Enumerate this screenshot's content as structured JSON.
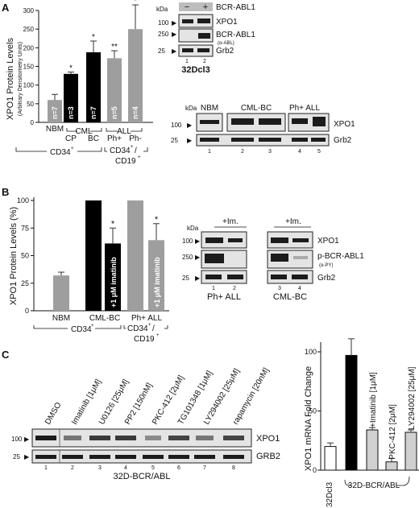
{
  "panel_labels": {
    "a": "A",
    "b": "B",
    "c": "C"
  },
  "chart_data": [
    {
      "type": "bar",
      "panel": "A",
      "ylabel": "XPO1 Protein Levels",
      "ylabel_sub": "(Arbitrary Densitometry Units)",
      "ylim": [
        0,
        300
      ],
      "yticks": [
        "0",
        "50",
        "100",
        "150",
        "200",
        "250",
        "300"
      ],
      "categories": [
        "NBM",
        "CP",
        "BC",
        "Ph+",
        "Ph-"
      ],
      "values": [
        60,
        130,
        188,
        172,
        250
      ],
      "errors": [
        15,
        5,
        30,
        20,
        65
      ],
      "n_labels": [
        "n=7",
        "n=3",
        "n=7",
        "n=5",
        "n=4"
      ],
      "significance": [
        "",
        "*",
        "*",
        "**",
        "*"
      ],
      "colors": [
        "#9e9e9e",
        "#000000",
        "#000000",
        "#9e9e9e",
        "#9e9e9e"
      ],
      "group_labels": {
        "cml": "CML",
        "all": "ALL",
        "cd34": "CD34",
        "cd34_sup": "+",
        "cd34cd19": "CD34",
        "cd19": "CD19",
        "sep": "/",
        "plus": "+"
      }
    },
    {
      "type": "bar",
      "panel": "B",
      "ylabel": "XPO1 Protein Levels (%)",
      "ylim": [
        0,
        100
      ],
      "yticks": [
        "0",
        "25",
        "50",
        "75",
        "100"
      ],
      "categories": [
        "NBM",
        "CML-BC",
        "Ph+ ALL"
      ],
      "bars": [
        {
          "group": "NBM",
          "value": 32,
          "error": 3,
          "color": "#9e9e9e",
          "label": ""
        },
        {
          "group": "CML-BC",
          "value": 100,
          "error": 0,
          "color": "#000000",
          "label": ""
        },
        {
          "group": "CML-BC",
          "value": 61,
          "error": 14,
          "color": "#000000",
          "label": "+1 μM imatinib",
          "sig": "*"
        },
        {
          "group": "Ph+ ALL",
          "value": 100,
          "error": 0,
          "color": "#9e9e9e",
          "label": ""
        },
        {
          "group": "Ph+ ALL",
          "value": 64,
          "error": 15,
          "color": "#9e9e9e",
          "label": "+1 μM imatinib",
          "sig": "*"
        }
      ],
      "group_labels": {
        "cd34": "CD34",
        "plus": "+",
        "cd34cd19": "CD34",
        "sep": "/",
        "cd19": "CD19"
      }
    },
    {
      "type": "bar",
      "panel": "C",
      "ylabel": "XPO1 mRNA Fold Change",
      "ylim": [
        0,
        100
      ],
      "yticks": [
        "0",
        "50",
        "100"
      ],
      "categories": [
        "32Dcl3",
        "",
        "+Imatinib [1μM]",
        "PKC-412 [2μM]",
        "LY294002 [25μM]"
      ],
      "values": [
        20,
        97,
        34,
        7,
        32
      ],
      "errors": [
        3,
        14,
        2,
        3,
        2
      ],
      "colors": [
        "#ffffff",
        "#000000",
        "#d0d0d0",
        "#d0d0d0",
        "#d0d0d0"
      ],
      "group_label": "32D-BCR/ABL"
    }
  ],
  "blots": {
    "a_right_top": {
      "kda": "kDa",
      "minus": "−",
      "plus": "+",
      "treatment": "BCR-ABL1",
      "markers": [
        "100",
        "250",
        "25"
      ],
      "proteins": [
        "XPO1",
        "BCR-ABL1",
        "(α-ABL)",
        "Grb2"
      ],
      "lanes": [
        "1",
        "2"
      ],
      "cell_line": "32Dcl3"
    },
    "a_right_bottom": {
      "kda": "kDa",
      "groups": [
        "NBM",
        "CML-BC",
        "Ph+ ALL"
      ],
      "markers": [
        "100",
        "25"
      ],
      "proteins": [
        "XPO1",
        "Grb2"
      ],
      "lanes": [
        "1",
        "2",
        "3",
        "4",
        "5"
      ]
    },
    "b_right": {
      "kda": "kDa",
      "treatment": "+Im.",
      "markers": [
        "100",
        "250",
        "25"
      ],
      "proteins": [
        "XPO1",
        "p-BCR-ABL1",
        "(α-PY)",
        "Grb2"
      ],
      "lanes": [
        "1",
        "2",
        "3",
        "4"
      ],
      "groups": [
        "Ph+ ALL",
        "CML-BC"
      ]
    },
    "c_left": {
      "treatments": [
        "DMSO",
        "Imatinib [1μM]",
        "U0126 [25μM]",
        "PP2 [150nM]",
        "PKC-412 [2μM]",
        "TG101348 [1μM]",
        "LY294002 [25μM]",
        "rapamycin [20nM]"
      ],
      "markers": [
        "100",
        "25"
      ],
      "proteins": [
        "XPO1",
        "GRB2"
      ],
      "lanes": [
        "1",
        "2",
        "3",
        "4",
        "5",
        "6",
        "7",
        "8"
      ],
      "cell_line": "32D-BCR/ABL"
    }
  }
}
